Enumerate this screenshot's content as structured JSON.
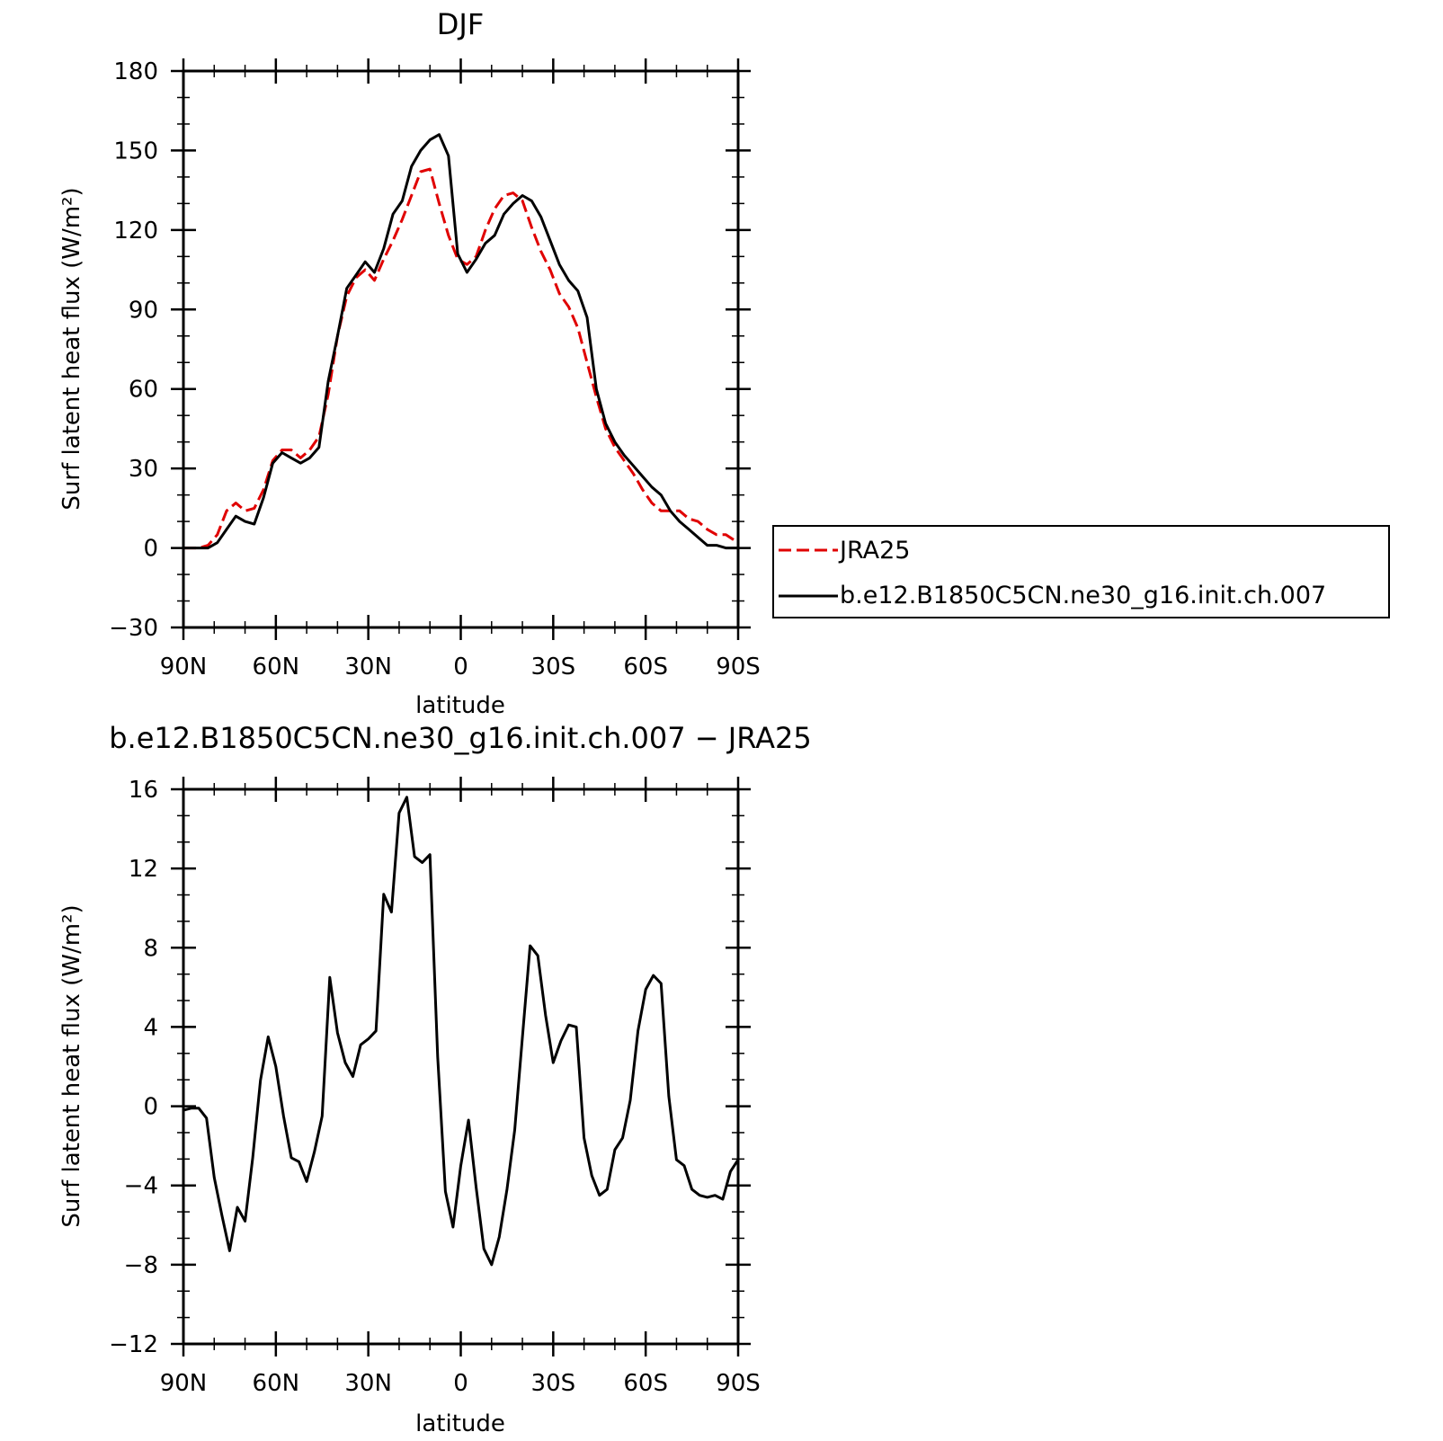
{
  "chart_data": [
    {
      "type": "line",
      "title": "DJF",
      "xlabel": "latitude",
      "ylabel": "Surf latent heat flux (W/m²)",
      "xlim": [
        -90,
        90
      ],
      "ylim": [
        -30,
        180
      ],
      "x_ticks": [
        -90,
        -60,
        -30,
        0,
        30,
        60,
        90
      ],
      "x_tick_labels": [
        "90N",
        "60N",
        "30N",
        "0",
        "30S",
        "60S",
        "90S"
      ],
      "y_ticks": [
        -30,
        0,
        30,
        60,
        90,
        120,
        150,
        180
      ],
      "y_tick_labels": [
        "−30",
        "0",
        "30",
        "60",
        "90",
        "120",
        "150",
        "180"
      ],
      "legend": {
        "placement": "right",
        "entries": [
          "JRA25",
          "b.e12.B1850C5CN.ne30_g16.init.ch.007"
        ]
      },
      "series": [
        {
          "name": "JRA25",
          "color": "#e00000",
          "dash": "dashed",
          "x": [
            -90,
            -85,
            -82,
            -79,
            -76,
            -73,
            -70,
            -67,
            -64,
            -61,
            -58,
            -55,
            -52,
            -49,
            -46,
            -43,
            -40,
            -37,
            -34,
            -31,
            -28,
            -25,
            -22,
            -19,
            -16,
            -13,
            -10,
            -7,
            -4,
            -1,
            2,
            5,
            8,
            11,
            14,
            17,
            20,
            23,
            26,
            29,
            32,
            35,
            38,
            41,
            44,
            47,
            50,
            53,
            56,
            59,
            62,
            65,
            68,
            71,
            74,
            77,
            80,
            83,
            86,
            90
          ],
          "values": [
            0,
            0,
            1,
            5,
            14,
            17,
            14,
            15,
            22,
            33,
            37,
            37,
            34,
            37,
            42,
            58,
            80,
            95,
            102,
            105,
            101,
            109,
            116,
            124,
            133,
            142,
            143,
            130,
            118,
            109,
            107,
            110,
            120,
            128,
            133,
            134,
            131,
            121,
            112,
            105,
            96,
            91,
            83,
            70,
            57,
            45,
            38,
            33,
            28,
            22,
            17,
            14,
            14,
            14,
            11,
            10,
            7,
            5,
            5,
            2
          ]
        },
        {
          "name": "b.e12.B1850C5CN.ne30_g16.init.ch.007",
          "color": "#000000",
          "dash": "solid",
          "x": [
            -90,
            -85,
            -82,
            -79,
            -76,
            -73,
            -70,
            -67,
            -64,
            -61,
            -58,
            -55,
            -52,
            -49,
            -46,
            -43,
            -40,
            -37,
            -34,
            -31,
            -28,
            -25,
            -22,
            -19,
            -16,
            -13,
            -10,
            -7,
            -4,
            -1,
            2,
            5,
            8,
            11,
            14,
            17,
            20,
            23,
            26,
            29,
            32,
            35,
            38,
            41,
            44,
            47,
            50,
            53,
            56,
            59,
            62,
            65,
            68,
            71,
            74,
            77,
            80,
            83,
            86,
            90
          ],
          "values": [
            0,
            0,
            0,
            2,
            7,
            12,
            10,
            9,
            19,
            32,
            36,
            34,
            32,
            34,
            38,
            63,
            80,
            98,
            103,
            108,
            104,
            113,
            126,
            131,
            144,
            150,
            154,
            156,
            148,
            111,
            104,
            109,
            115,
            118,
            126,
            130,
            133,
            131,
            125,
            116,
            107,
            101,
            97,
            87,
            60,
            47,
            40,
            35,
            31,
            27,
            23,
            20,
            14,
            10,
            7,
            4,
            1,
            1,
            0,
            0
          ]
        }
      ]
    },
    {
      "type": "line",
      "title": "b.e12.B1850C5CN.ne30_g16.init.ch.007 − JRA25",
      "xlabel": "latitude",
      "ylabel": "Surf latent heat flux (W/m²)",
      "xlim": [
        -90,
        90
      ],
      "ylim": [
        -12,
        16
      ],
      "x_ticks": [
        -90,
        -60,
        -30,
        0,
        30,
        60,
        90
      ],
      "x_tick_labels": [
        "90N",
        "60N",
        "30N",
        "0",
        "30S",
        "60S",
        "90S"
      ],
      "y_ticks": [
        -12,
        -8,
        -4,
        0,
        4,
        8,
        12,
        16
      ],
      "y_tick_labels": [
        "−12",
        "−8",
        "−4",
        "0",
        "4",
        "8",
        "12",
        "16"
      ],
      "series": [
        {
          "color": "#000000",
          "dash": "solid",
          "x": [
            -90,
            -87.5,
            -85,
            -82.5,
            -80,
            -77.5,
            -75,
            -72.5,
            -70,
            -67.5,
            -65,
            -62.5,
            -60,
            -57.5,
            -55,
            -52.5,
            -50,
            -47.5,
            -45,
            -42.5,
            -40,
            -37.5,
            -35,
            -32.5,
            -30,
            -27.5,
            -25,
            -22.5,
            -20,
            -17.5,
            -15,
            -12.5,
            -10,
            -7.5,
            -5,
            -2.5,
            0,
            2.5,
            5,
            7.5,
            10,
            12.5,
            15,
            17.5,
            20,
            22.5,
            25,
            27.5,
            30,
            32.5,
            35,
            37.5,
            40,
            42.5,
            45,
            47.5,
            50,
            52.5,
            55,
            57.5,
            60,
            62.5,
            65,
            67.5,
            70,
            72.5,
            75,
            77.5,
            80,
            82.5,
            85,
            87.5,
            90
          ],
          "values": [
            -0.2,
            -0.1,
            -0.1,
            -0.6,
            -3.6,
            -5.5,
            -7.3,
            -5.1,
            -5.8,
            -2.6,
            1.3,
            3.5,
            2.0,
            -0.5,
            -2.6,
            -2.8,
            -3.8,
            -2.3,
            -0.5,
            6.5,
            3.7,
            2.2,
            1.5,
            3.1,
            3.4,
            3.8,
            10.7,
            9.8,
            14.8,
            15.6,
            12.6,
            12.3,
            12.7,
            2.5,
            -4.3,
            -6.1,
            -3.0,
            -0.7,
            -4.1,
            -7.2,
            -8.0,
            -6.6,
            -4.2,
            -1.2,
            3.5,
            8.1,
            7.6,
            4.6,
            2.2,
            3.3,
            4.1,
            4.0,
            -1.6,
            -3.5,
            -4.5,
            -4.2,
            -2.2,
            -1.6,
            0.3,
            3.8,
            5.9,
            6.6,
            6.2,
            0.5,
            -2.7,
            -3.0,
            -4.2,
            -4.5,
            -4.6,
            -4.5,
            -4.7,
            -3.3,
            -2.7
          ]
        }
      ]
    }
  ]
}
